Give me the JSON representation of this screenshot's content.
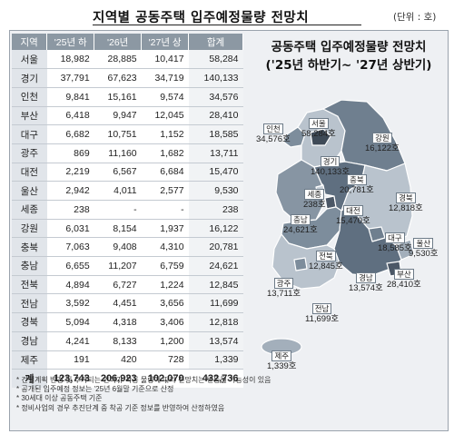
{
  "title": "지역별 공동주택 입주예정물량 전망치",
  "unit": "(단위 : 호)",
  "table": {
    "headers": [
      "지역",
      "'25년 하",
      "'26년",
      "'27년 상",
      "합계"
    ],
    "rows": [
      {
        "region": "서울",
        "h25": "18,982",
        "y26": "28,885",
        "h27": "10,417",
        "total": "58,284"
      },
      {
        "region": "경기",
        "h25": "37,791",
        "y26": "67,623",
        "h27": "34,719",
        "total": "140,133"
      },
      {
        "region": "인천",
        "h25": "9,841",
        "y26": "15,161",
        "h27": "9,574",
        "total": "34,576"
      },
      {
        "region": "부산",
        "h25": "6,418",
        "y26": "9,947",
        "h27": "12,045",
        "total": "28,410"
      },
      {
        "region": "대구",
        "h25": "6,682",
        "y26": "10,751",
        "h27": "1,152",
        "total": "18,585"
      },
      {
        "region": "광주",
        "h25": "869",
        "y26": "11,160",
        "h27": "1,682",
        "total": "13,711"
      },
      {
        "region": "대전",
        "h25": "2,219",
        "y26": "6,567",
        "h27": "6,684",
        "total": "15,470"
      },
      {
        "region": "울산",
        "h25": "2,942",
        "y26": "4,011",
        "h27": "2,577",
        "total": "9,530"
      },
      {
        "region": "세종",
        "h25": "238",
        "y26": "-",
        "h27": "-",
        "total": "238"
      },
      {
        "region": "강원",
        "h25": "6,031",
        "y26": "8,154",
        "h27": "1,937",
        "total": "16,122"
      },
      {
        "region": "충북",
        "h25": "7,063",
        "y26": "9,408",
        "h27": "4,310",
        "total": "20,781"
      },
      {
        "region": "충남",
        "h25": "6,655",
        "y26": "11,207",
        "h27": "6,759",
        "total": "24,621"
      },
      {
        "region": "전북",
        "h25": "4,894",
        "y26": "6,727",
        "h27": "1,224",
        "total": "12,845"
      },
      {
        "region": "전남",
        "h25": "3,592",
        "y26": "4,451",
        "h27": "3,656",
        "total": "11,699"
      },
      {
        "region": "경북",
        "h25": "5,094",
        "y26": "4,318",
        "h27": "3,406",
        "total": "12,818"
      },
      {
        "region": "경남",
        "h25": "4,241",
        "y26": "8,133",
        "h27": "1,200",
        "total": "13,574"
      },
      {
        "region": "제주",
        "h25": "191",
        "y26": "420",
        "h27": "728",
        "total": "1,339"
      }
    ],
    "sum": {
      "region": "계",
      "h25": "123,743",
      "y26": "206,923",
      "h27": "102,070",
      "total": "432,736"
    }
  },
  "map": {
    "title_line1": "공동주택 입주예정물량 전망치",
    "title_line2": "('25년 하반기~ '27년 상반기)",
    "labels": {
      "seoul": {
        "name": "서울",
        "value": "58,284호"
      },
      "incheon": {
        "name": "인천",
        "value": "34,576호"
      },
      "gangwon": {
        "name": "강원",
        "value": "16,122호"
      },
      "gyeonggi": {
        "name": "경기",
        "value": "140,133호"
      },
      "chungbuk": {
        "name": "충북",
        "value": "20,781호"
      },
      "sejong": {
        "name": "세종",
        "value": "238호"
      },
      "gyeongbuk": {
        "name": "경북",
        "value": "12,818호"
      },
      "daejeon": {
        "name": "대전",
        "value": "15,470호"
      },
      "chungnam": {
        "name": "충남",
        "value": "24,621호"
      },
      "daegu": {
        "name": "대구",
        "value": "18,585호"
      },
      "ulsan": {
        "name": "울산",
        "value": "9,530호"
      },
      "jeonbuk": {
        "name": "전북",
        "value": "12,845호"
      },
      "busan": {
        "name": "부산",
        "value": "28,410호"
      },
      "gyeongnam": {
        "name": "경남",
        "value": "13,574호"
      },
      "gwangju": {
        "name": "광주",
        "value": "13,711호"
      },
      "jeonnam": {
        "name": "전남",
        "value": "11,699호"
      },
      "jeju": {
        "name": "제주",
        "value": "1,339호"
      }
    }
  },
  "notes": [
    "* 건설계획 변경 및 추가되는 인허가·착공 물량에 따라 전망치는 변동될 가능성이 있음",
    "* 공개된 입주예정 정보는 '25년 6월말 기준으로 산정",
    "* 30세대 이상 공동주택 기준",
    "* 정비사업의 경우 추진단계 중 착공 기준 정보를 반영하여 산정하였음"
  ]
}
